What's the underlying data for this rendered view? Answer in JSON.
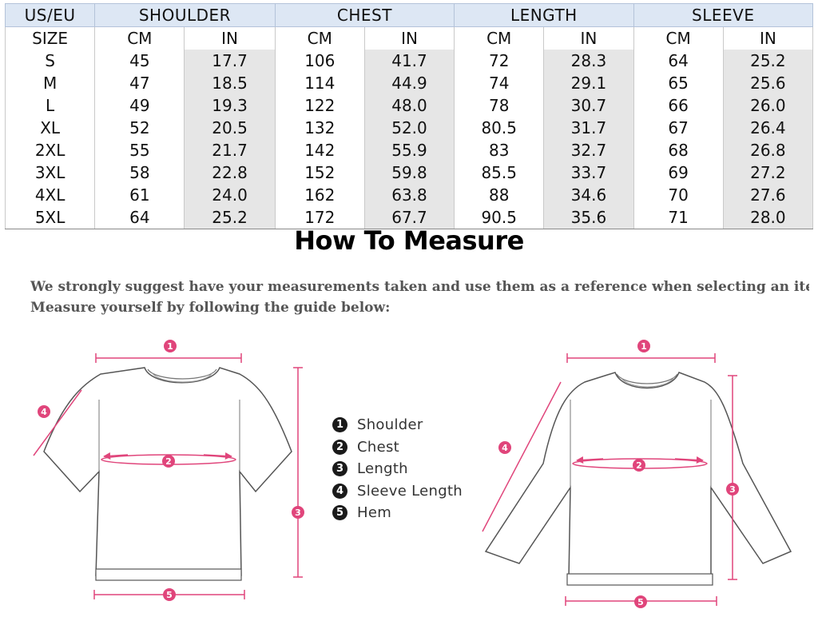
{
  "size_chart": {
    "group_headers": [
      "US/EU",
      "SHOULDER",
      "CHEST",
      "LENGTH",
      "SLEEVE"
    ],
    "size_label": "SIZE",
    "unit_labels": [
      "CM",
      "IN",
      "CM",
      "IN",
      "CM",
      "IN",
      "CM",
      "IN"
    ],
    "rows": [
      {
        "size": "S",
        "values": [
          "45",
          "17.7",
          "106",
          "41.7",
          "72",
          "28.3",
          "64",
          "25.2"
        ]
      },
      {
        "size": "M",
        "values": [
          "47",
          "18.5",
          "114",
          "44.9",
          "74",
          "29.1",
          "65",
          "25.6"
        ]
      },
      {
        "size": "L",
        "values": [
          "49",
          "19.3",
          "122",
          "48.0",
          "78",
          "30.7",
          "66",
          "26.0"
        ]
      },
      {
        "size": "XL",
        "values": [
          "52",
          "20.5",
          "132",
          "52.0",
          "80.5",
          "31.7",
          "67",
          "26.4"
        ]
      },
      {
        "size": "2XL",
        "values": [
          "55",
          "21.7",
          "142",
          "55.9",
          "83",
          "32.7",
          "68",
          "26.8"
        ]
      },
      {
        "size": "3XL",
        "values": [
          "58",
          "22.8",
          "152",
          "59.8",
          "85.5",
          "33.7",
          "69",
          "27.2"
        ]
      },
      {
        "size": "4XL",
        "values": [
          "61",
          "24.0",
          "162",
          "63.8",
          "88",
          "34.6",
          "70",
          "27.6"
        ]
      },
      {
        "size": "5XL",
        "values": [
          "64",
          "25.2",
          "172",
          "67.7",
          "90.5",
          "35.6",
          "71",
          "28.0"
        ]
      }
    ]
  },
  "guide": {
    "title": "How To Measure",
    "note_lines": [
      "We strongly suggest have your measurements taken and use them as a reference when selecting an item size.",
      "Measure yourself by following the guide below:"
    ],
    "legend": [
      {
        "num": "1",
        "label": "Shoulder"
      },
      {
        "num": "2",
        "label": "Chest"
      },
      {
        "num": "3",
        "label": "Length"
      },
      {
        "num": "4",
        "label": "Sleeve Length"
      },
      {
        "num": "5",
        "label": "Hem"
      }
    ],
    "marker_numbers": [
      "1",
      "2",
      "3",
      "4",
      "5"
    ]
  },
  "colors": {
    "header_bg": "#dde7f4",
    "shaded_cell": "#e6e6e6",
    "measure_pink": "#e0457b",
    "outline_gray": "#555555"
  }
}
